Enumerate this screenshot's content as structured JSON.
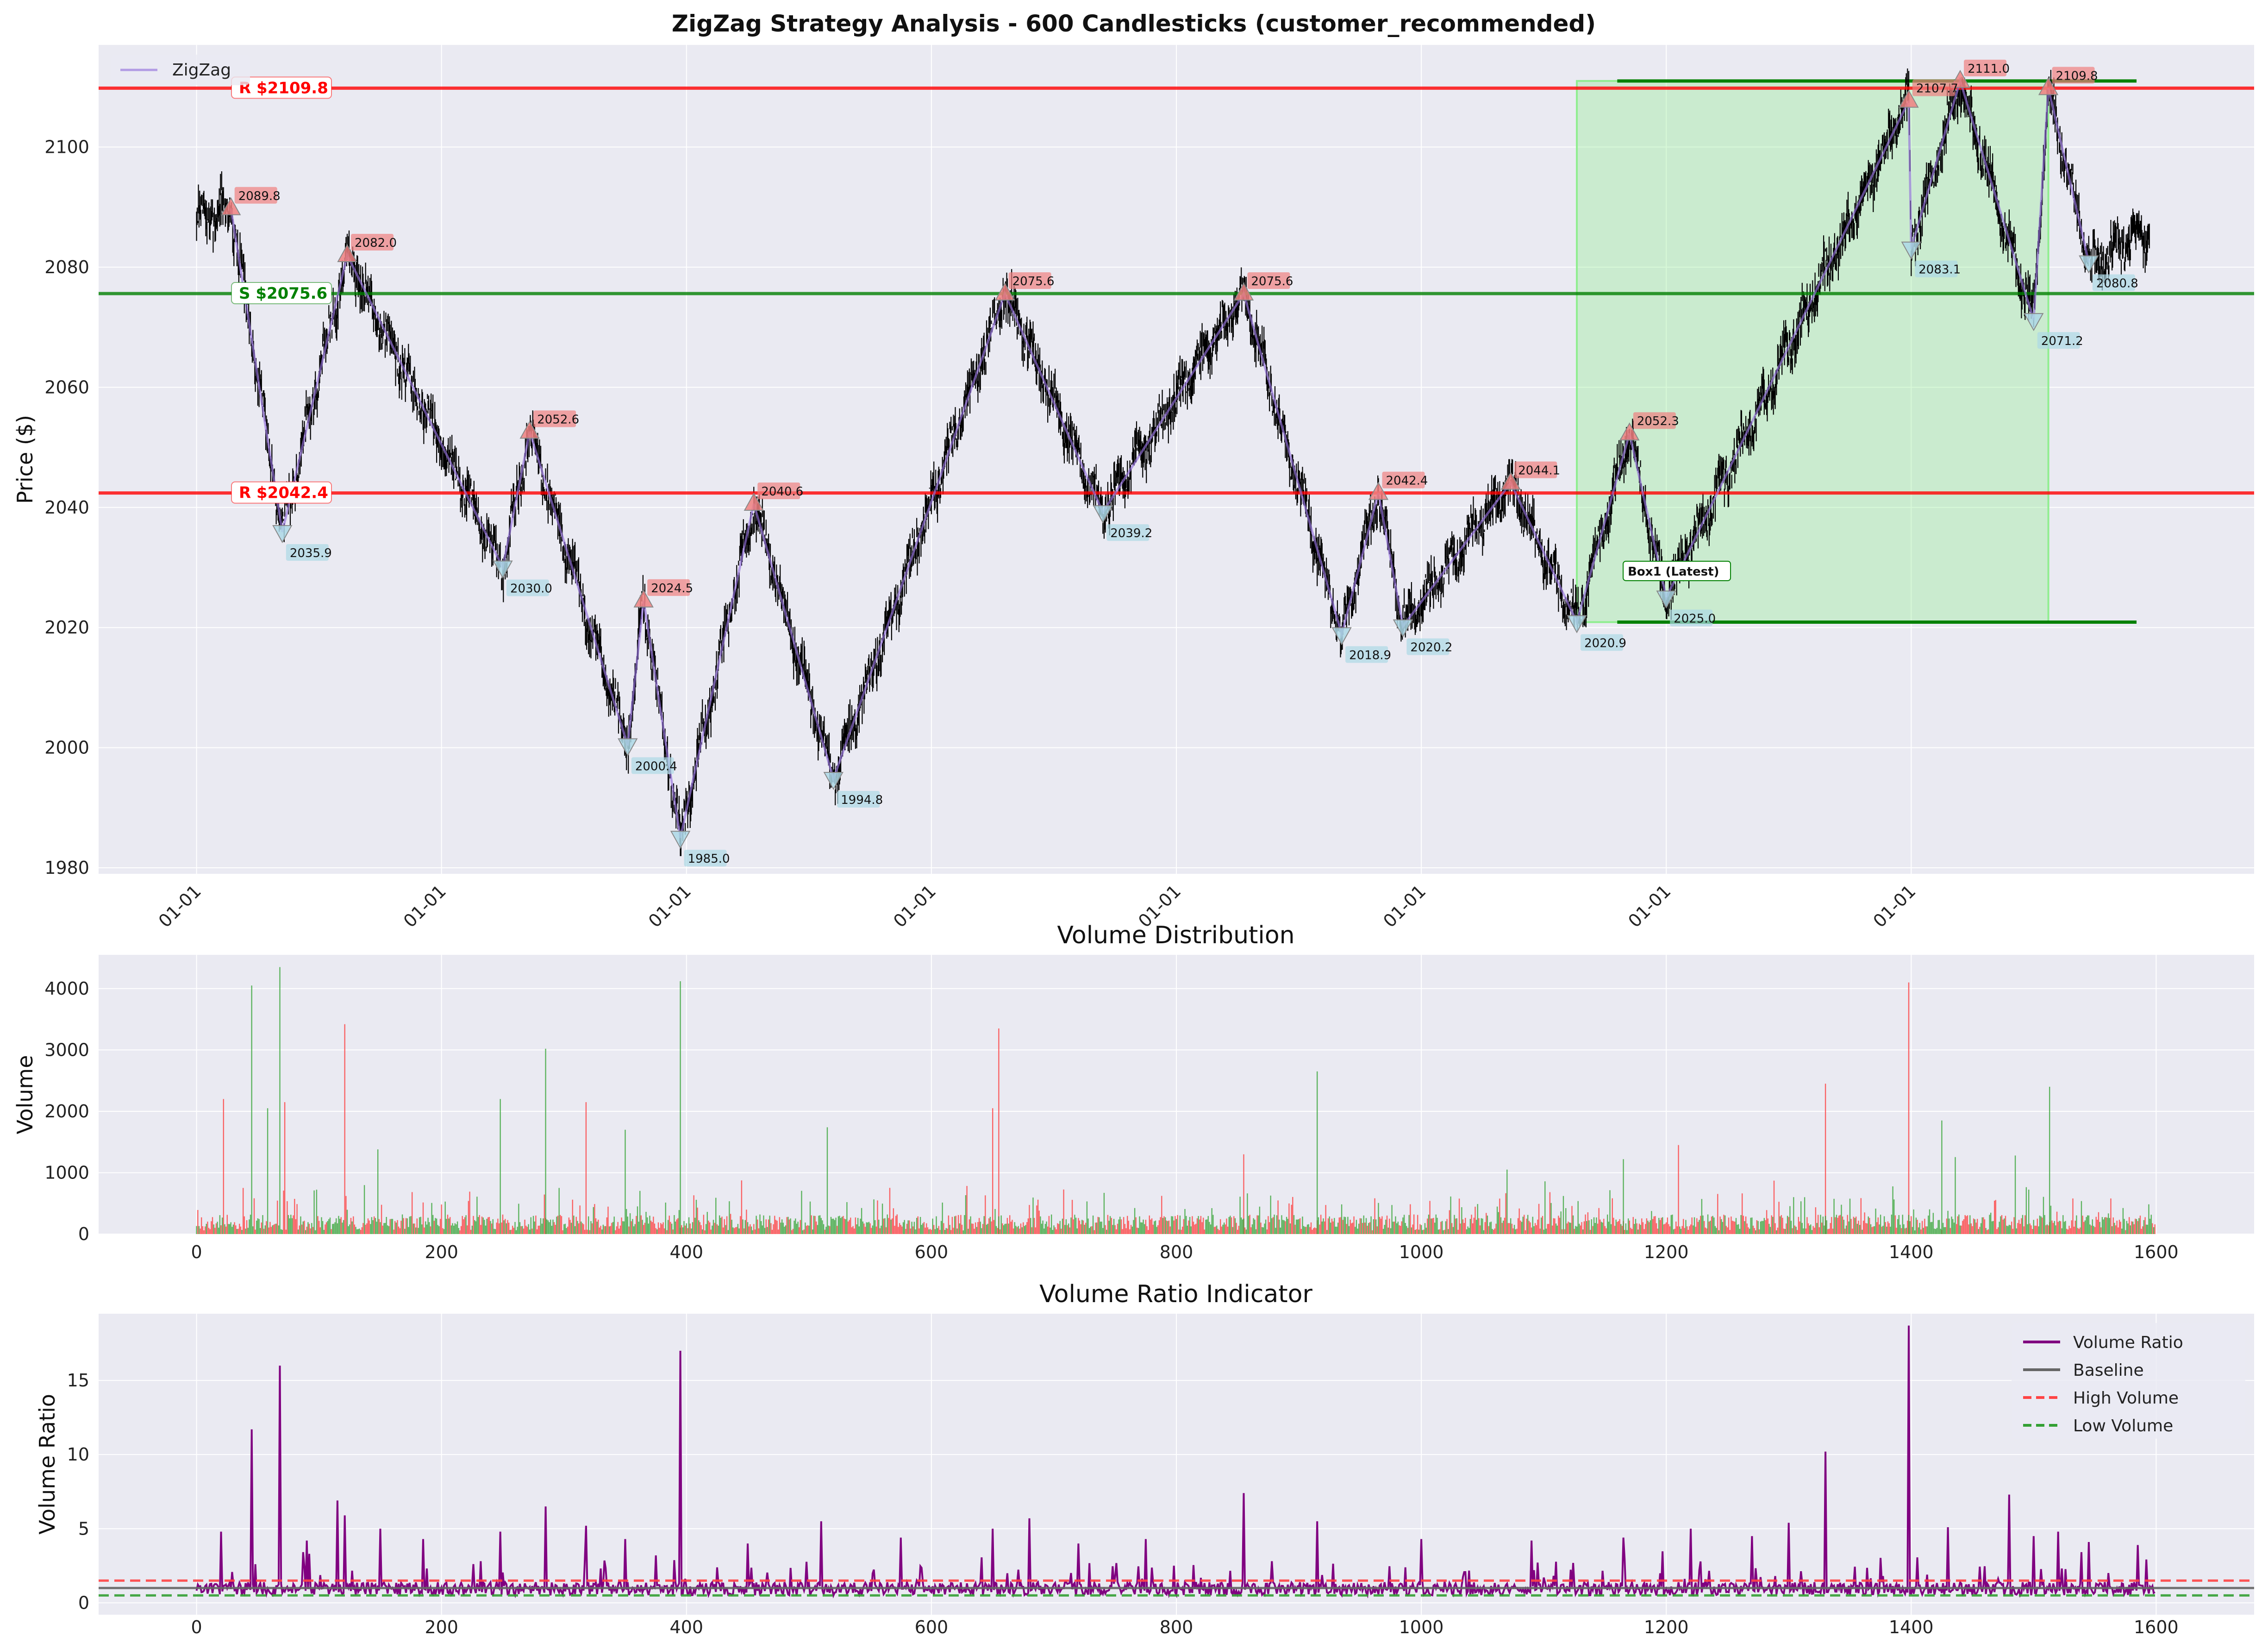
{
  "title": "ZigZag Strategy Analysis - 600 Candlesticks (customer_recommended)",
  "colors": {
    "panel_bg": "#EAEAF2",
    "grid": "#FFFFFF",
    "zigzag": "#9370DB",
    "resistance": "#FF0000",
    "support": "#008000",
    "box_fill": "#90EE90",
    "up_volume": "#2CA02C",
    "down_volume": "#FF3333",
    "volume_ratio": "#800080",
    "baseline": "#666666",
    "high_marker": "#F08080",
    "low_marker": "#ADD8E6"
  },
  "chart_data": [
    {
      "type": "line",
      "name": "price",
      "ylabel": "Price ($)",
      "xlabel": "",
      "ylim": [
        1979,
        2117
      ],
      "yticks": [
        1980,
        2000,
        2020,
        2040,
        2060,
        2080,
        2100
      ],
      "x_tick_labels": [
        "01-01",
        "01-01",
        "01-01",
        "01-01",
        "01-01",
        "01-01",
        "01-01",
        "01-01"
      ],
      "grid": true,
      "legend": {
        "placement": "top-left",
        "items": [
          "ZigZag"
        ]
      },
      "series": [
        {
          "name": "ZigZag",
          "points": [
            [
              28,
              2089.8,
              "high"
            ],
            [
              70,
              2035.9,
              "low"
            ],
            [
              123,
              2082.0,
              "high"
            ],
            [
              250,
              2030.0,
              "low"
            ],
            [
              272,
              2052.6,
              "high"
            ],
            [
              352,
              2000.4,
              "low"
            ],
            [
              365,
              2024.5,
              "high"
            ],
            [
              395,
              1985.0,
              "low"
            ],
            [
              455,
              2040.6,
              "high"
            ],
            [
              520,
              1994.8,
              "low"
            ],
            [
              660,
              2075.6,
              "high"
            ],
            [
              740,
              2039.2,
              "low"
            ],
            [
              855,
              2075.6,
              "high"
            ],
            [
              935,
              2018.9,
              "low"
            ],
            [
              965,
              2042.4,
              "high"
            ],
            [
              985,
              2020.2,
              "low"
            ],
            [
              1073,
              2044.1,
              "high"
            ],
            [
              1127,
              2020.9,
              "low"
            ],
            [
              1170,
              2052.3,
              "high"
            ],
            [
              1200,
              2025.0,
              "low"
            ],
            [
              1398,
              2107.7,
              "high"
            ],
            [
              1400,
              2083.1,
              "low"
            ],
            [
              1440,
              2111.0,
              "high"
            ],
            [
              1500,
              2071.2,
              "low"
            ],
            [
              1512,
              2109.8,
              "high"
            ],
            [
              1545,
              2080.8,
              "low"
            ]
          ]
        }
      ],
      "levels": [
        {
          "kind": "resistance",
          "label": "R $2109.8",
          "price": 2109.8
        },
        {
          "kind": "support",
          "label": "S $2075.6",
          "price": 2075.6
        },
        {
          "kind": "resistance",
          "label": "R $2042.4",
          "price": 2042.4
        }
      ],
      "box": {
        "label": "Box1 (Latest)",
        "x_start": 1127,
        "x_end": 1512,
        "top": 2111.0,
        "bottom": 2020.9
      }
    },
    {
      "type": "bar",
      "name": "volume",
      "title": "Volume Distribution",
      "ylabel": "Volume",
      "xlabel": "",
      "xlim": [
        -80,
        1680
      ],
      "ylim": [
        0,
        4550
      ],
      "xticks": [
        0,
        200,
        400,
        600,
        800,
        1000,
        1200,
        1400,
        1600
      ],
      "yticks": [
        0,
        1000,
        2000,
        3000,
        4000
      ],
      "grid": true,
      "spikes": [
        [
          22,
          2200,
          "down"
        ],
        [
          45,
          4050,
          "up"
        ],
        [
          58,
          2050,
          "up"
        ],
        [
          68,
          4350,
          "up"
        ],
        [
          72,
          2150,
          "down"
        ],
        [
          121,
          3420,
          "down"
        ],
        [
          148,
          1380,
          "up"
        ],
        [
          248,
          2200,
          "up"
        ],
        [
          285,
          3020,
          "up"
        ],
        [
          318,
          2150,
          "down"
        ],
        [
          350,
          1700,
          "up"
        ],
        [
          395,
          4120,
          "up"
        ],
        [
          515,
          1740,
          "up"
        ],
        [
          650,
          2050,
          "down"
        ],
        [
          655,
          3350,
          "down"
        ],
        [
          855,
          1300,
          "down"
        ],
        [
          915,
          2650,
          "up"
        ],
        [
          1070,
          1050,
          "up"
        ],
        [
          1165,
          1220,
          "up"
        ],
        [
          1210,
          1450,
          "down"
        ],
        [
          1330,
          2450,
          "down"
        ],
        [
          1398,
          4100,
          "down"
        ],
        [
          1425,
          1850,
          "up"
        ],
        [
          1485,
          1280,
          "up"
        ],
        [
          1513,
          2400,
          "up"
        ]
      ]
    },
    {
      "type": "line",
      "name": "volume_ratio",
      "title": "Volume Ratio Indicator",
      "ylabel": "Volume Ratio",
      "xlabel": "",
      "xlim": [
        -80,
        1680
      ],
      "ylim": [
        -0.8,
        19.5
      ],
      "xticks": [
        0,
        200,
        400,
        600,
        800,
        1000,
        1200,
        1400,
        1600
      ],
      "yticks": [
        0,
        5,
        10,
        15
      ],
      "grid": true,
      "legend": {
        "placement": "top-right"
      },
      "series": [
        {
          "name": "Volume Ratio",
          "style": "solid",
          "color": "#800080"
        },
        {
          "name": "Baseline",
          "style": "solid",
          "color": "#666666",
          "value": 1.0
        },
        {
          "name": "High Volume",
          "style": "dashed",
          "color": "#FF4444",
          "value": 1.5
        },
        {
          "name": "Low Volume",
          "style": "dashed",
          "color": "#33A033",
          "value": 0.5
        }
      ],
      "spikes": [
        [
          20,
          4.8
        ],
        [
          45,
          11.7
        ],
        [
          68,
          16.0
        ],
        [
          90,
          4.2
        ],
        [
          115,
          6.9
        ],
        [
          121,
          5.9
        ],
        [
          150,
          5.0
        ],
        [
          185,
          4.3
        ],
        [
          248,
          4.8
        ],
        [
          285,
          6.5
        ],
        [
          318,
          5.2
        ],
        [
          350,
          4.3
        ],
        [
          395,
          17.0
        ],
        [
          450,
          4.0
        ],
        [
          510,
          5.5
        ],
        [
          575,
          4.4
        ],
        [
          650,
          5.0
        ],
        [
          680,
          5.7
        ],
        [
          720,
          4.0
        ],
        [
          775,
          4.3
        ],
        [
          855,
          7.4
        ],
        [
          915,
          5.5
        ],
        [
          1000,
          4.3
        ],
        [
          1090,
          4.2
        ],
        [
          1165,
          4.4
        ],
        [
          1220,
          5.0
        ],
        [
          1270,
          4.5
        ],
        [
          1300,
          5.4
        ],
        [
          1330,
          10.2
        ],
        [
          1398,
          18.7
        ],
        [
          1430,
          5.1
        ],
        [
          1480,
          7.3
        ],
        [
          1500,
          4.5
        ],
        [
          1520,
          4.8
        ],
        [
          1545,
          4.1
        ],
        [
          1585,
          3.9
        ]
      ]
    }
  ]
}
